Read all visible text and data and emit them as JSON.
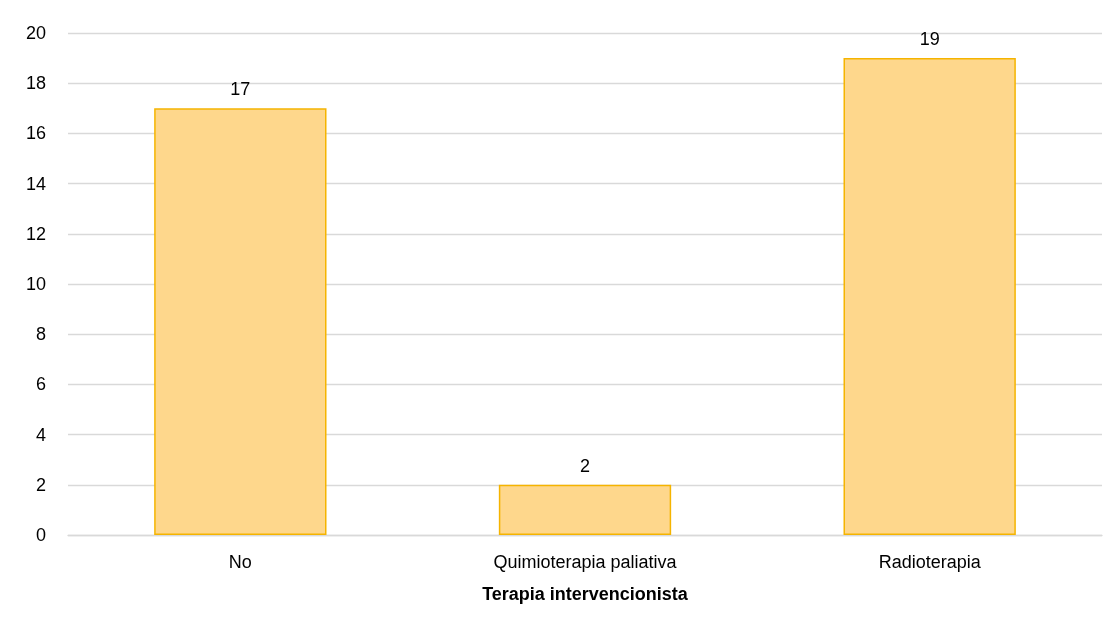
{
  "chart_data": {
    "type": "bar",
    "xlabel": "Terapia intervencionista",
    "categories": [
      "No",
      "Quimioterapia paliativa",
      "Radioterapia"
    ],
    "values": [
      17,
      2,
      19
    ],
    "color": "#fed78c",
    "data_labels": true,
    "ylim": [
      0,
      20
    ],
    "yticks": [
      0,
      2,
      4,
      6,
      8,
      10,
      12,
      14,
      16,
      18,
      20
    ],
    "grid": "y"
  }
}
